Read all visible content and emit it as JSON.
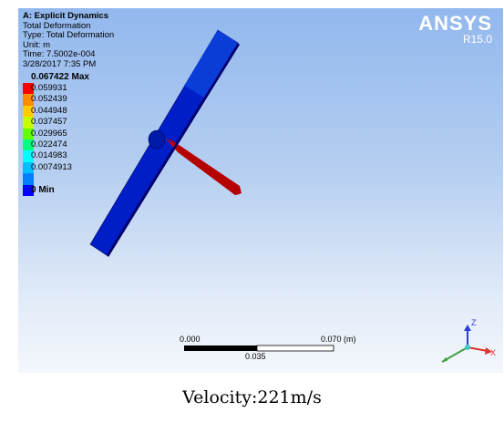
{
  "header": {
    "title": "A: Explicit Dynamics",
    "lines": [
      "Total Deformation",
      "Type: Total Deformation",
      "Unit: m",
      "Time: 7.5002e-004",
      "3/28/2017 7:35 PM"
    ]
  },
  "logo": {
    "brand": "ANSYS",
    "version": "R15.0"
  },
  "legend": {
    "max_label": "0.067422 Max",
    "values": [
      "0.059931",
      "0.052439",
      "0.044948",
      "0.037457",
      "0.029965",
      "0.022474",
      "0.014983",
      "0.0074913"
    ],
    "min_label": "0 Min",
    "colors": [
      "#ff0000",
      "#ff8c00",
      "#ffcc00",
      "#c8ff00",
      "#66ff00",
      "#00ff80",
      "#00ffff",
      "#00c0ff",
      "#0080ff",
      "#0000ff"
    ]
  },
  "scale_bar": {
    "left": "0.000",
    "right": "0.070 (m)",
    "middle": "0.035"
  },
  "triad": {
    "z": "Z",
    "x": "X"
  },
  "caption": "Velocity:221m/s"
}
